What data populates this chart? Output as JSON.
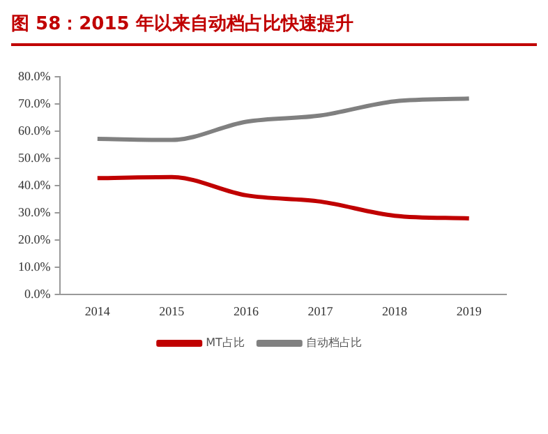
{
  "chart_data": {
    "type": "line",
    "title": "图 58：2015 年以来自动档占比快速提升",
    "categories": [
      "2014",
      "2015",
      "2016",
      "2017",
      "2018",
      "2019"
    ],
    "series": [
      {
        "name": "MT占比",
        "color": "#c00000",
        "values": [
          42.8,
          43.2,
          36.5,
          34.2,
          29.0,
          28.0
        ]
      },
      {
        "name": "自动档占比",
        "color": "#808080",
        "values": [
          57.2,
          56.8,
          63.5,
          65.8,
          71.0,
          72.0
        ]
      }
    ],
    "ylim": [
      0,
      80
    ],
    "yticks": [
      {
        "value": 0,
        "label": "0.0%"
      },
      {
        "value": 10,
        "label": "10.0%"
      },
      {
        "value": 20,
        "label": "20.0%"
      },
      {
        "value": 30,
        "label": "30.0%"
      },
      {
        "value": 40,
        "label": "40.0%"
      },
      {
        "value": 50,
        "label": "50.0%"
      },
      {
        "value": 60,
        "label": "60.0%"
      },
      {
        "value": 70,
        "label": "70.0%"
      },
      {
        "value": 80,
        "label": "80.0%"
      }
    ],
    "grid": false,
    "legend": "bottom",
    "marker": "none",
    "line_style": "solid"
  }
}
